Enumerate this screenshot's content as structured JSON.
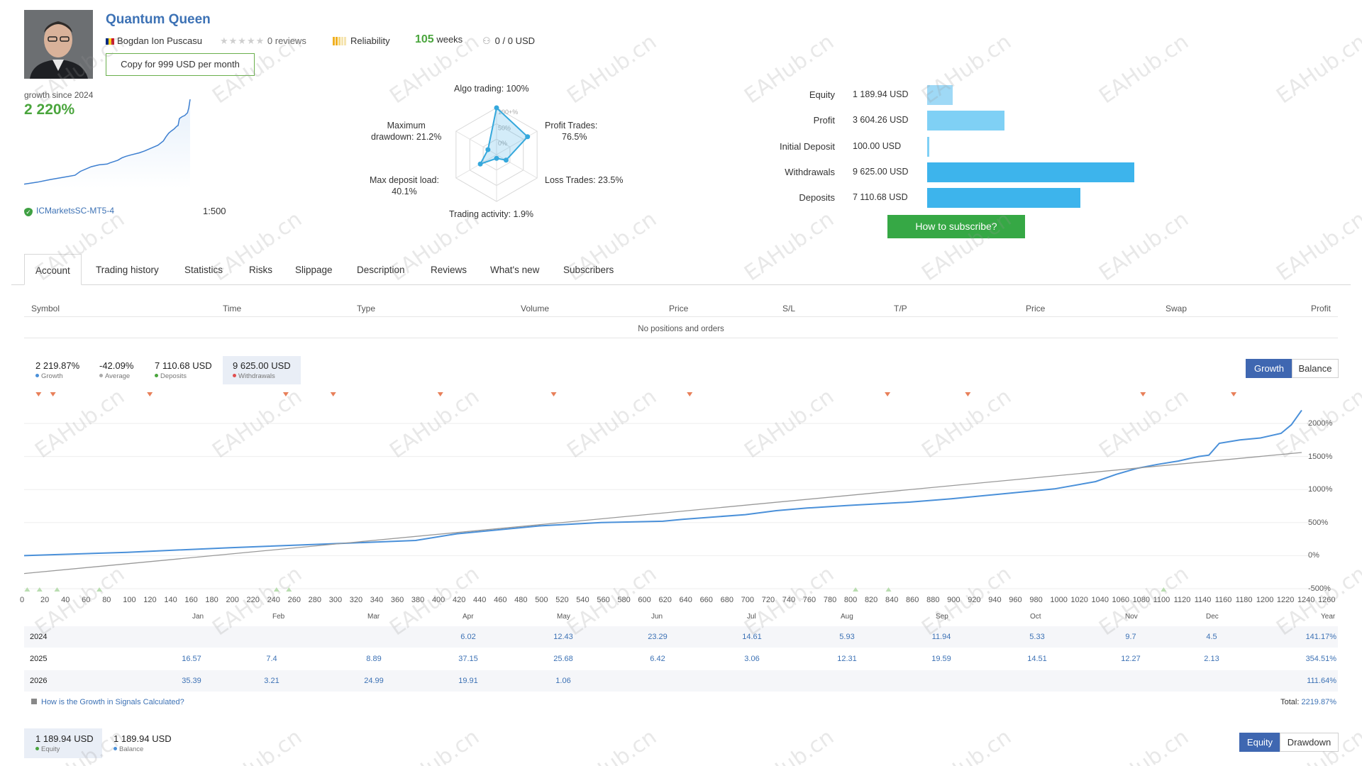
{
  "header": {
    "title": "Quantum Queen",
    "author": "Bogdan Ion Puscasu",
    "reviews": "0 reviews",
    "reliability": "Reliability",
    "weeks_num": "105",
    "weeks_label": "weeks",
    "subscribers": "0 / 0 USD",
    "copy_button": "Copy for 999 USD per month"
  },
  "summary": {
    "growth_label": "growth since 2024",
    "growth_value": "2 220%",
    "server": "ICMarketsSC-MT5-4",
    "leverage": "1:500"
  },
  "radar": {
    "algo": "Algo trading: 100%",
    "profit_trades_1": "Profit Trades:",
    "profit_trades_2": "76.5%",
    "loss_trades": "Loss Trades: 23.5%",
    "activity": "Trading activity: 1.9%",
    "deposit_load_1": "Max deposit load:",
    "deposit_load_2": "40.1%",
    "drawdown_1": "Maximum",
    "drawdown_2": "drawdown: 21.2%",
    "ring_100": "100+%",
    "ring_50": "50%",
    "ring_0": "0%",
    "values": {
      "algo": 100,
      "profit_trades": 76.5,
      "loss_trades": 23.5,
      "activity": 1.9,
      "deposit_load": 40.1,
      "drawdown": 21.2
    }
  },
  "balances": [
    {
      "label": "Equity",
      "value": "1 189.94 USD",
      "amount": 1189.94,
      "color": "#9fd9f6"
    },
    {
      "label": "Profit",
      "value": "3 604.26 USD",
      "amount": 3604.26,
      "color": "#7fd0f5"
    },
    {
      "label": "Initial Deposit",
      "value": "100.00 USD",
      "amount": 100.0,
      "color": "#7fd0f5"
    },
    {
      "label": "Withdrawals",
      "value": "9 625.00 USD",
      "amount": 9625.0,
      "color": "#3db4ec"
    },
    {
      "label": "Deposits",
      "value": "7 110.68 USD",
      "amount": 7110.68,
      "color": "#3db4ec"
    }
  ],
  "subscribe_button": "How to subscribe?",
  "tabs": [
    "Account",
    "Trading history",
    "Statistics",
    "Risks",
    "Slippage",
    "Description",
    "Reviews",
    "What's new",
    "Subscribers"
  ],
  "positions": {
    "headers": [
      "Symbol",
      "Time",
      "Type",
      "Volume",
      "Price",
      "S/L",
      "T/P",
      "Price",
      "Swap",
      "Profit"
    ],
    "empty_text": "No positions and orders"
  },
  "growth_stats": [
    {
      "value": "2 219.87%",
      "label": "Growth",
      "color": "#4a90d9"
    },
    {
      "value": "-42.09%",
      "label": "Average",
      "color": "#aaaaaa"
    },
    {
      "value": "7 110.68 USD",
      "label": "Deposits",
      "color": "#4aa53d"
    },
    {
      "value": "9 625.00 USD",
      "label": "Withdrawals",
      "color": "#e05050"
    }
  ],
  "chart_toggle": {
    "growth": "Growth",
    "balance": "Balance"
  },
  "chart_data": {
    "type": "line",
    "xlim": [
      0,
      1260
    ],
    "ylim": [
      -500,
      2000
    ],
    "y_ticks": [
      "2000%",
      "1500%",
      "1000%",
      "500%",
      "0%",
      "-500%"
    ],
    "x_ticks": [
      "0",
      "20",
      "40",
      "60",
      "80",
      "100",
      "120",
      "140",
      "160",
      "180",
      "200",
      "220",
      "240",
      "260",
      "280",
      "300",
      "320",
      "340",
      "360",
      "380",
      "400",
      "420",
      "440",
      "460",
      "480",
      "500",
      "520",
      "540",
      "560",
      "580",
      "600",
      "620",
      "640",
      "660",
      "680",
      "700",
      "720",
      "740",
      "760",
      "780",
      "800",
      "820",
      "840",
      "860",
      "880",
      "900",
      "920",
      "940",
      "960",
      "980",
      "1000",
      "1020",
      "1040",
      "1060",
      "1080",
      "1100",
      "1120",
      "1140",
      "1160",
      "1180",
      "1200",
      "1220",
      "1240",
      "1260"
    ],
    "months": [
      "Jan",
      "Feb",
      "Mar",
      "Apr",
      "May",
      "Jun",
      "Jul",
      "Aug",
      "Sep",
      "Oct",
      "Nov",
      "Dec",
      "Year"
    ],
    "series": [
      {
        "color": "#4a90d9",
        "x": [
          0,
          100,
          200,
          300,
          380,
          420,
          500,
          560,
          620,
          640,
          700,
          730,
          760,
          800,
          860,
          900,
          960,
          1000,
          1040,
          1060,
          1080,
          1100,
          1120,
          1140,
          1150,
          1160,
          1180,
          1200,
          1220,
          1230,
          1240
        ],
        "y": [
          0,
          50,
          120,
          180,
          230,
          330,
          450,
          500,
          520,
          550,
          620,
          680,
          720,
          760,
          810,
          860,
          950,
          1010,
          1120,
          1230,
          1320,
          1380,
          1430,
          1500,
          1520,
          1700,
          1750,
          1780,
          1850,
          1980,
          2200
        ]
      },
      {
        "color": "#999999",
        "x": [
          0,
          1240
        ],
        "y": [
          -270,
          1560
        ]
      }
    ],
    "withdrawal_markers_x": [
      14,
      28,
      122,
      254,
      300,
      404,
      514,
      646,
      838,
      916,
      1086,
      1174
    ],
    "deposit_markers_x": [
      3,
      15,
      32,
      73,
      245,
      257,
      807,
      839,
      1106
    ]
  },
  "year_table": {
    "rows": [
      {
        "year": "2024",
        "cells": [
          "",
          "",
          "",
          "6.02",
          "12.43",
          "23.29",
          "14.61",
          "5.93",
          "11.94",
          "5.33",
          "9.7",
          "4.5"
        ],
        "total": "141.17%"
      },
      {
        "year": "2025",
        "cells": [
          "16.57",
          "7.4",
          "8.89",
          "37.15",
          "25.68",
          "6.42",
          "3.06",
          "12.31",
          "19.59",
          "14.51",
          "12.27",
          "2.13"
        ],
        "total": "354.51%"
      },
      {
        "year": "2026",
        "cells": [
          "35.39",
          "3.21",
          "24.99",
          "19.91",
          "1.06",
          "",
          "",
          "",
          "",
          "",
          "",
          ""
        ],
        "total": "111.64%"
      }
    ],
    "how_link": "How is the Growth in Signals Calculated?",
    "total_label": "Total:",
    "total_value": "2219.87%"
  },
  "equity_stats": [
    {
      "value": "1 189.94 USD",
      "label": "Equity",
      "color": "#4aa53d"
    },
    {
      "value": "1 189.94 USD",
      "label": "Balance",
      "color": "#4a90d9"
    }
  ],
  "equity_toggle": {
    "equity": "Equity",
    "drawdown": "Drawdown"
  },
  "watermark": "EAHub.cn"
}
